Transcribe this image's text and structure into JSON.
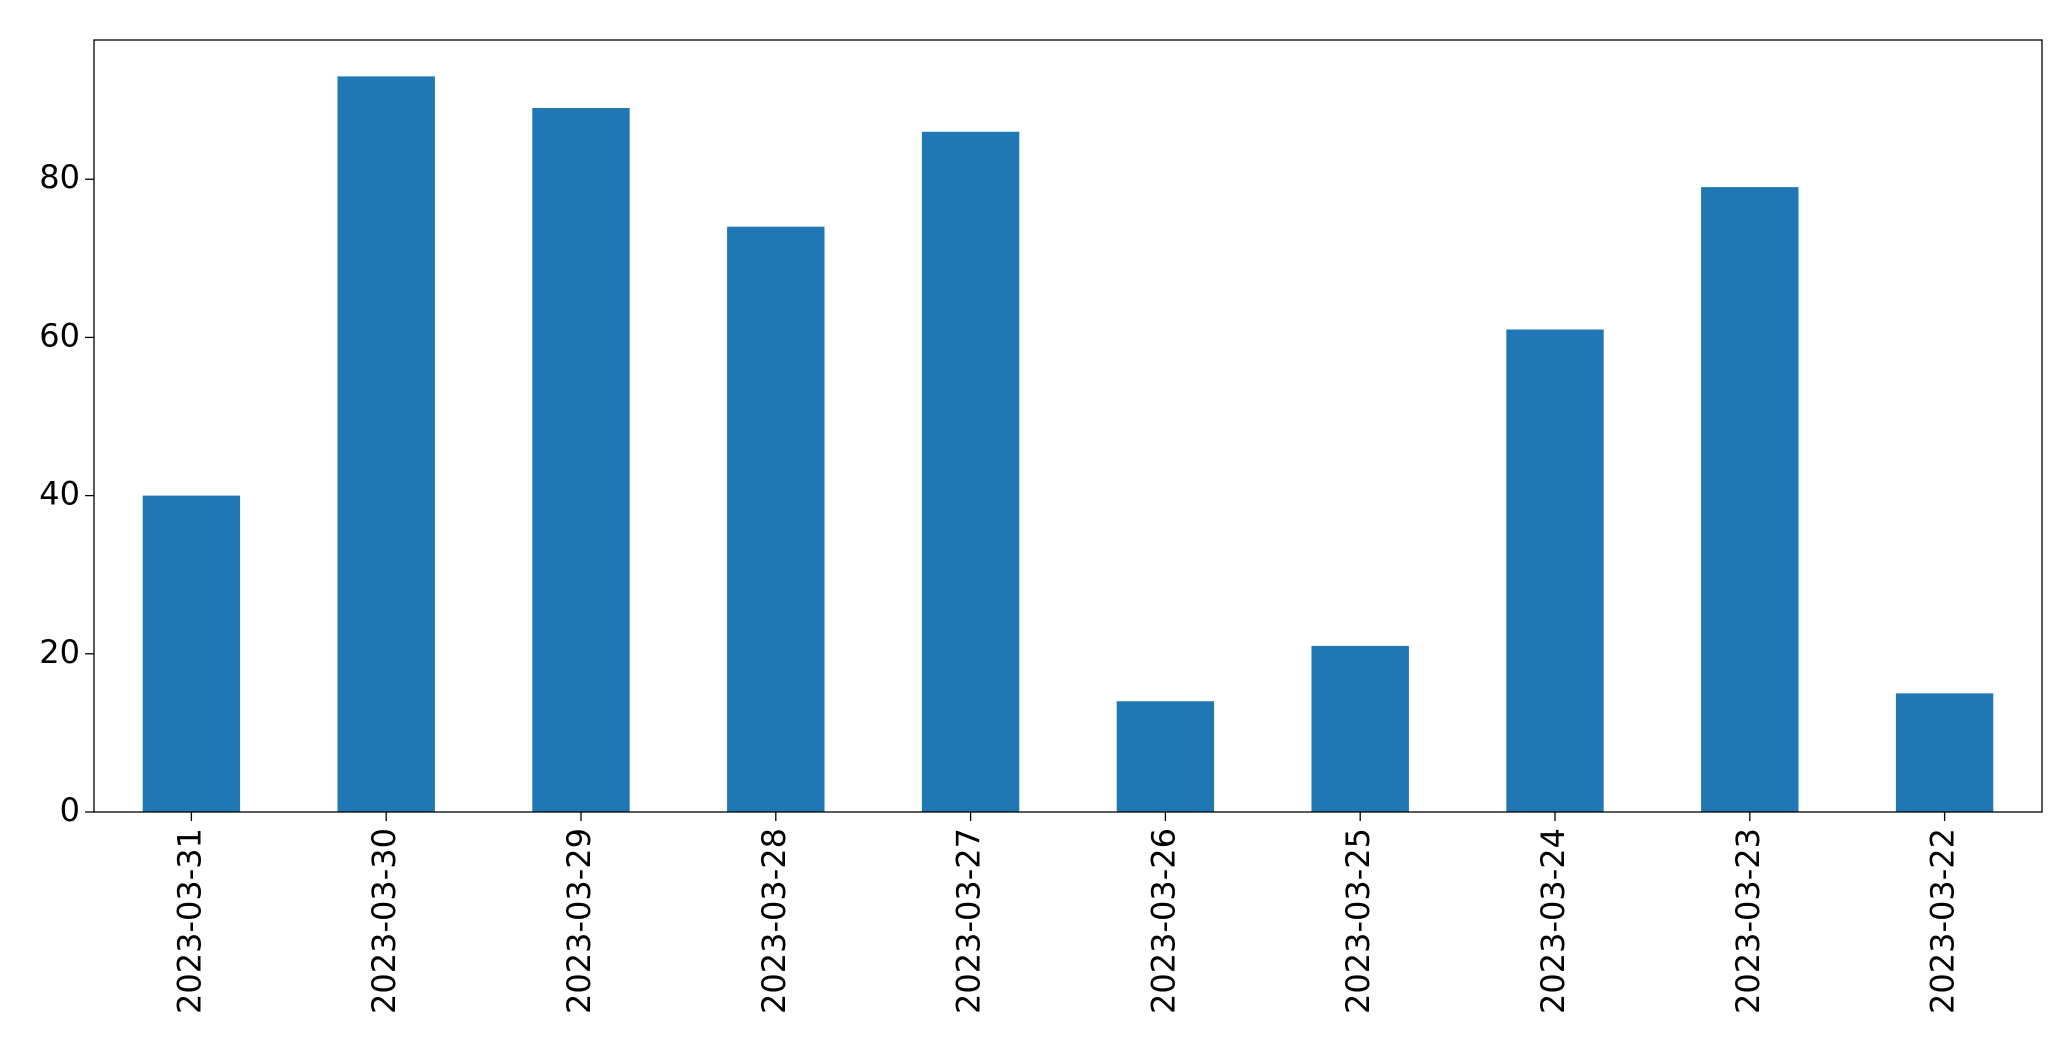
{
  "chart_data": {
    "type": "bar",
    "categories": [
      "2023-03-31",
      "2023-03-30",
      "2023-03-29",
      "2023-03-28",
      "2023-03-27",
      "2023-03-26",
      "2023-03-25",
      "2023-03-24",
      "2023-03-23",
      "2023-03-22"
    ],
    "values": [
      40,
      93,
      89,
      74,
      86,
      14,
      21,
      61,
      79,
      15
    ],
    "color": "#1f77b4",
    "ylim": [
      0,
      97.6
    ],
    "yticks": [
      0,
      20,
      40,
      60,
      80
    ],
    "grid": false
  }
}
